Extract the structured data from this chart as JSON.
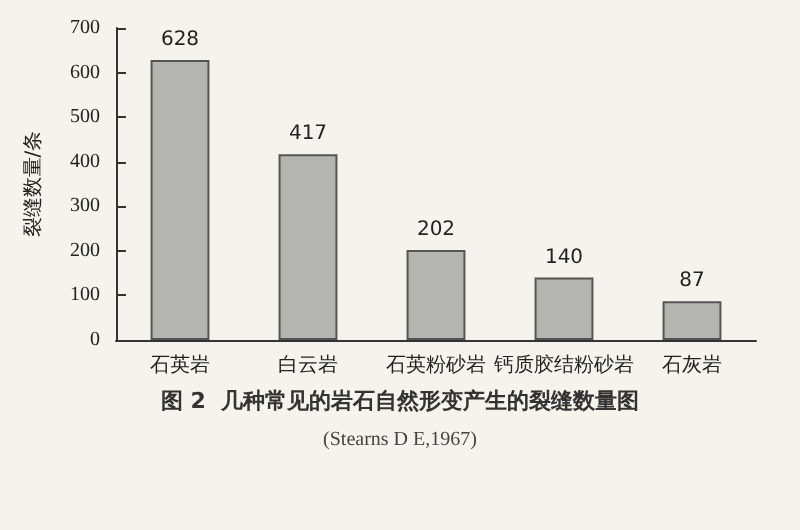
{
  "chart_data": {
    "type": "bar",
    "title": "图 2  几种常见的岩石自然形变产生的裂缝数量图",
    "subtitle": "(Stearns D E,1967)",
    "ylabel": "裂缝数量/条",
    "categories": [
      "石英岩",
      "白云岩",
      "石英粉砂岩",
      "钙质胶结粉砂岩",
      "石灰岩"
    ],
    "values": [
      628,
      417,
      202,
      140,
      87
    ],
    "color": "#b4b4b0",
    "ylim": [
      0,
      700
    ],
    "yticks": [
      0,
      100,
      200,
      300,
      400,
      500,
      600,
      700
    ],
    "grid": false,
    "data_labels": true
  }
}
